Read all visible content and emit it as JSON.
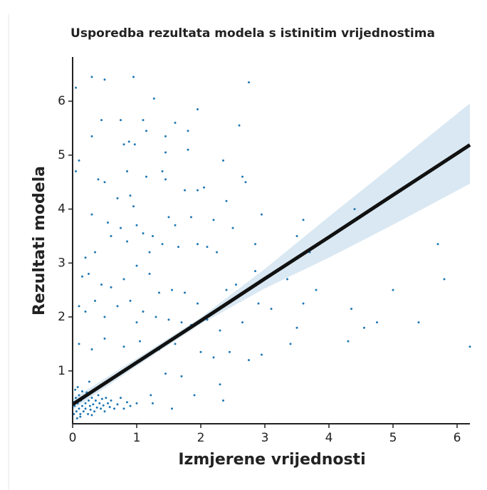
{
  "chart_data": {
    "type": "scatter",
    "title": "Usporedba rezultata modela s istinitim vrijednostima",
    "x_label": "Izmjerene vrijednosti",
    "y_label": "Rezultati modela",
    "color": "#1f77b4",
    "x": [
      0.05,
      0.3,
      0.5,
      0.95,
      1.27,
      2.75,
      1.6,
      1.95,
      0.45,
      0.75,
      1.1,
      2.6,
      0.3,
      1.15,
      1.45,
      1.8,
      0.8,
      0.88,
      0.97,
      1.45,
      1.8,
      0.1,
      0.05,
      0.4,
      0.5,
      0.85,
      1.15,
      1.4,
      1.45,
      2.35,
      2.65,
      2.7,
      0.7,
      0.9,
      1.75,
      1.95,
      2.05,
      2.4,
      0.3,
      0.95,
      0.55,
      0.75,
      1,
      1.1,
      1.25,
      1.5,
      1.6,
      1.85,
      2.2,
      2.5,
      2.95,
      3.6,
      4.4,
      0.2,
      0.35,
      0.6,
      0.85,
      1.2,
      1.4,
      1.65,
      1.95,
      2.1,
      2.25,
      2.85,
      3.5,
      3.7,
      5.7,
      0.15,
      0.25,
      0.45,
      0.6,
      0.8,
      1,
      1.2,
      1.35,
      1.55,
      1.75,
      1.95,
      2.4,
      2.55,
      2.85,
      3.35,
      0.1,
      0.2,
      0.35,
      0.5,
      0.7,
      0.9,
      1,
      1.1,
      1.3,
      1.5,
      1.7,
      1.85,
      2.1,
      2.3,
      2.65,
      2.9,
      3.1,
      3.5,
      3.6,
      3.8,
      4.35,
      4.55,
      4.75,
      5,
      5.4,
      5.8,
      6.2,
      4.3,
      0.1,
      0.3,
      0.5,
      0.8,
      1.05,
      1.35,
      1.6,
      2,
      2.2,
      2.45,
      2.75,
      2.95,
      3.4,
      1.45,
      1.7,
      2.3,
      2.35,
      1.9,
      1.25,
      1.55,
      1.22,
      0.02,
      0.03,
      0.05,
      0.06,
      0.08,
      0.1,
      0.1,
      0.12,
      0.13,
      0.15,
      0.17,
      0.18,
      0.2,
      0.2,
      0.22,
      0.24,
      0.25,
      0.27,
      0.28,
      0.3,
      0.32,
      0.34,
      0.36,
      0.38,
      0.4,
      0.42,
      0.44,
      0.46,
      0.48,
      0.5,
      0.52,
      0.55,
      0.58,
      0.6,
      0.65,
      0.7,
      0.75,
      0.8,
      0.85,
      0.9,
      1,
      0.04,
      0.08,
      0.15,
      0.12,
      0.3,
      0.01,
      0.07,
      0.26
    ],
    "values": [
      6.25,
      6.45,
      6.4,
      6.45,
      6.05,
      6.35,
      5.6,
      5.85,
      5.65,
      5.65,
      5.65,
      5.55,
      5.35,
      5.45,
      5.35,
      5.45,
      5.2,
      5.25,
      5.2,
      5.05,
      5.1,
      4.9,
      4.7,
      4.55,
      4.5,
      4.7,
      4.6,
      4.7,
      4.55,
      4.9,
      4.6,
      4.5,
      4.2,
      4.25,
      4.35,
      4.35,
      4.4,
      4.15,
      3.9,
      4.05,
      3.75,
      3.65,
      3.7,
      3.55,
      3.5,
      3.85,
      3.7,
      3.85,
      3.8,
      3.65,
      3.9,
      3.8,
      4,
      3.1,
      3.2,
      3.5,
      3.4,
      3.2,
      3.35,
      3.3,
      3.35,
      3.3,
      3.2,
      3.35,
      3.5,
      3.2,
      3.35,
      2.75,
      2.8,
      2.6,
      2.55,
      2.7,
      2.95,
      2.8,
      2.45,
      2.5,
      2.45,
      2.25,
      2.5,
      2.6,
      2.85,
      2.7,
      2.2,
      2.1,
      2.3,
      2,
      2.2,
      2.3,
      1.9,
      2.1,
      2,
      1.95,
      1.9,
      1.85,
      1.95,
      1.75,
      1.9,
      2.25,
      2.15,
      1.8,
      2.25,
      2.5,
      2.15,
      1.8,
      1.9,
      2.5,
      1.9,
      2.7,
      1.45,
      1.55,
      1.5,
      1.4,
      1.6,
      1.45,
      1.55,
      1.4,
      1.5,
      1.35,
      1.25,
      1.35,
      1.2,
      1.3,
      1.5,
      0.95,
      0.9,
      0.75,
      0.45,
      0.55,
      0.4,
      0.3,
      0.55,
      0.2,
      0.35,
      0.5,
      0.25,
      0.4,
      0.3,
      0.55,
      0.2,
      0.45,
      0.35,
      0.25,
      0.5,
      0.4,
      0.3,
      0.6,
      0.2,
      0.45,
      0.35,
      0.28,
      0.5,
      0.38,
      0.25,
      0.45,
      0.32,
      0.55,
      0.4,
      0.3,
      0.48,
      0.36,
      0.25,
      0.5,
      0.4,
      0.33,
      0.45,
      0.3,
      0.38,
      0.5,
      0.3,
      0.42,
      0.35,
      0.4,
      0.65,
      0.7,
      0.62,
      0.15,
      0.18,
      0.42,
      0.12,
      0.8
    ],
    "regression": {
      "color": "#111111",
      "band_color": "#1f77b4",
      "x": [
        0,
        1,
        2,
        3,
        4,
        5,
        6.2
      ],
      "values": [
        0.38,
        1.156,
        1.93,
        2.71,
        3.48,
        4.26,
        5.19
      ],
      "lower": [
        0.28,
        1.09,
        1.87,
        2.53,
        3.1,
        3.71,
        4.47
      ],
      "upper": [
        0.48,
        1.23,
        1.99,
        2.89,
        3.86,
        4.81,
        5.96
      ]
    },
    "xlim": [
      0,
      6.2
    ],
    "ylim": [
      0.02,
      6.82
    ],
    "xticks": [
      0,
      1,
      2,
      3,
      4,
      5,
      6
    ],
    "yticks": [
      1,
      2,
      3,
      4,
      5,
      6
    ],
    "grid": false
  }
}
